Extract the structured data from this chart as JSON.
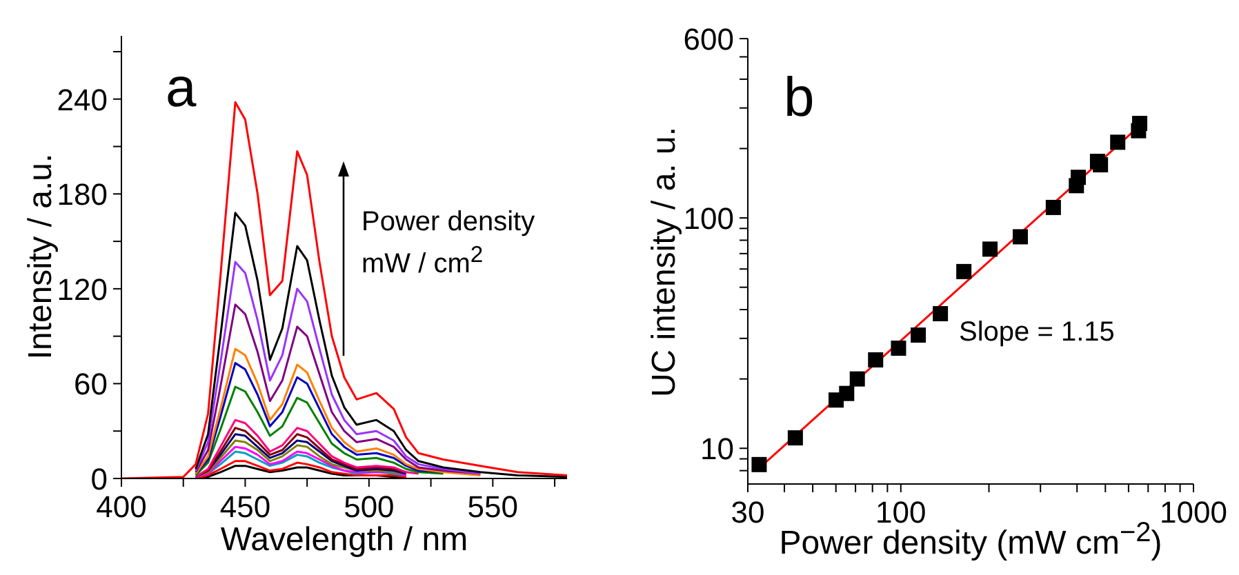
{
  "chart_data": [
    {
      "type": "line",
      "annotations": [
        "a",
        "Power density mW / cm$^{2}$"
      ],
      "xlabel": "Wavelength / nm",
      "ylabel": "Intensity / a.u.",
      "xlim": [
        400,
        580
      ],
      "ylim": [
        0,
        280
      ],
      "xticks": [
        400,
        {
          "value": 425,
          "label": null
        },
        450,
        {
          "value": 475,
          "label": null
        },
        500,
        {
          "value": 525,
          "label": null
        },
        550,
        {
          "value": 575,
          "label": null
        }
      ],
      "yticks": [
        0,
        {
          "value": 30,
          "label": null
        },
        60,
        {
          "value": 90,
          "label": null
        },
        120,
        {
          "value": 150,
          "label": null
        },
        180,
        {
          "value": 210,
          "label": null
        },
        240,
        {
          "value": 270,
          "label": null
        }
      ],
      "x": [
        400,
        425,
        430,
        435,
        440,
        446,
        450,
        455,
        460,
        465,
        471,
        475,
        480,
        485,
        490,
        495,
        503,
        510,
        515,
        520,
        530,
        545,
        560,
        580
      ],
      "series": [
        {
          "color": "#000000",
          "values": [
            null,
            null,
            0,
            1,
            4,
            8,
            8,
            6,
            4,
            5,
            7,
            7,
            5,
            3,
            2,
            2,
            2,
            1,
            1,
            null,
            null,
            null,
            null,
            null
          ]
        },
        {
          "color": "#ff0000",
          "values": [
            null,
            null,
            0,
            2,
            6,
            11,
            11,
            8,
            5,
            6,
            10,
            9,
            7,
            4,
            3,
            2,
            2,
            2,
            1,
            null,
            null,
            null,
            null,
            null
          ]
        },
        {
          "color": "#00a0c0",
          "values": [
            null,
            null,
            1,
            3,
            9,
            17,
            16,
            12,
            8,
            10,
            15,
            14,
            10,
            7,
            5,
            3,
            4,
            3,
            2,
            null,
            null,
            null,
            null,
            null
          ]
        },
        {
          "color": "#ff00ff",
          "values": [
            null,
            null,
            1,
            3,
            11,
            20,
            19,
            15,
            9,
            11,
            17,
            16,
            12,
            8,
            5,
            4,
            4,
            4,
            2,
            null,
            null,
            null,
            null,
            null
          ]
        },
        {
          "color": "#808000",
          "values": [
            null,
            null,
            1,
            4,
            13,
            24,
            23,
            18,
            11,
            14,
            21,
            20,
            14,
            9,
            7,
            5,
            5,
            4,
            3,
            null,
            null,
            null,
            null,
            null
          ]
        },
        {
          "color": "#000080",
          "values": [
            null,
            null,
            1,
            5,
            15,
            28,
            27,
            20,
            13,
            16,
            24,
            23,
            17,
            11,
            8,
            5,
            6,
            5,
            3,
            null,
            null,
            null,
            null,
            null
          ]
        },
        {
          "color": "#800000",
          "values": [
            null,
            null,
            1,
            5,
            17,
            32,
            30,
            23,
            15,
            18,
            28,
            26,
            19,
            12,
            9,
            6,
            7,
            6,
            4,
            null,
            null,
            null,
            null,
            null
          ]
        },
        {
          "color": "#ff0080",
          "values": [
            null,
            null,
            1,
            6,
            20,
            37,
            35,
            27,
            17,
            21,
            32,
            30,
            22,
            14,
            10,
            7,
            8,
            7,
            4,
            3,
            null,
            null,
            null,
            null
          ]
        },
        {
          "color": "#008000",
          "values": [
            null,
            null,
            2,
            10,
            31,
            58,
            55,
            42,
            27,
            33,
            51,
            48,
            35,
            22,
            16,
            12,
            13,
            10,
            6,
            4,
            3,
            null,
            null,
            null
          ]
        },
        {
          "color": "#0000c0",
          "values": [
            null,
            null,
            3,
            12,
            39,
            73,
            69,
            53,
            33,
            42,
            64,
            60,
            44,
            28,
            20,
            15,
            16,
            13,
            8,
            5,
            4,
            null,
            null,
            null
          ]
        },
        {
          "color": "#ff8000",
          "values": [
            null,
            null,
            3,
            14,
            44,
            82,
            78,
            60,
            37,
            47,
            72,
            67,
            49,
            32,
            23,
            17,
            19,
            15,
            9,
            6,
            4,
            2,
            null,
            null
          ]
        },
        {
          "color": "#800080",
          "values": [
            null,
            null,
            4,
            18,
            58,
            110,
            104,
            80,
            49,
            62,
            96,
            90,
            66,
            42,
            30,
            23,
            25,
            20,
            12,
            7,
            5,
            3,
            null,
            null
          ]
        },
        {
          "color": "#9933ff",
          "values": [
            null,
            null,
            5,
            23,
            73,
            137,
            130,
            100,
            62,
            78,
            120,
            112,
            82,
            53,
            37,
            28,
            30,
            24,
            14,
            9,
            6,
            3,
            null,
            null
          ]
        },
        {
          "color": "#000000",
          "values": [
            null,
            null,
            6,
            28,
            90,
            168,
            160,
            125,
            75,
            95,
            147,
            138,
            100,
            65,
            45,
            34,
            37,
            30,
            18,
            11,
            7,
            4,
            2,
            1
          ]
        },
        {
          "color": "#ff0000",
          "values": [
            0,
            1,
            9,
            41,
            128,
            238,
            227,
            180,
            116,
            125,
            207,
            192,
            137,
            90,
            64,
            50,
            54,
            44,
            26,
            16,
            12,
            8,
            4,
            2
          ]
        }
      ]
    },
    {
      "type": "scatter",
      "annotations": [
        "b",
        "Slope = 1.15"
      ],
      "xlabel": "Power density (mW cm$^{−2}$)",
      "ylabel": "UC intensity / a. u.",
      "log": "xy",
      "xlim": [
        30,
        1000
      ],
      "ylim": [
        7,
        600
      ],
      "xticks": [
        30,
        {
          "value": 40,
          "label": null
        },
        {
          "value": 50,
          "label": null
        },
        {
          "value": 60,
          "label": null
        },
        {
          "value": 70,
          "label": null
        },
        {
          "value": 80,
          "label": null
        },
        {
          "value": 90,
          "label": null
        },
        100,
        {
          "value": 200,
          "label": null
        },
        {
          "value": 300,
          "label": null
        },
        {
          "value": 400,
          "label": null
        },
        {
          "value": 500,
          "label": null
        },
        {
          "value": 600,
          "label": null
        },
        {
          "value": 700,
          "label": null
        },
        {
          "value": 800,
          "label": null
        },
        {
          "value": 900,
          "label": null
        },
        1000
      ],
      "yticks": [
        {
          "value": 8,
          "label": null
        },
        {
          "value": 9,
          "label": null
        },
        10,
        {
          "value": 20,
          "label": null
        },
        {
          "value": 30,
          "label": null
        },
        {
          "value": 40,
          "label": null
        },
        {
          "value": 50,
          "label": null
        },
        {
          "value": 60,
          "label": null
        },
        {
          "value": 70,
          "label": null
        },
        {
          "value": 80,
          "label": null
        },
        {
          "value": 90,
          "label": null
        },
        100,
        {
          "value": 200,
          "label": null
        },
        {
          "value": 300,
          "label": null
        },
        {
          "value": 400,
          "label": null
        },
        {
          "value": 500,
          "label": null
        },
        600
      ],
      "series": [
        {
          "color": "#000000",
          "marker": "square",
          "x": [
            32.8,
            43.6,
            60.1,
            65.3,
            71.0,
            82.0,
            98.2,
            114.7,
            136.5,
            164.2,
            201.7,
            256,
            332,
            398,
            404,
            470,
            481,
            551,
            649,
            655
          ],
          "values": [
            8.5,
            11.1,
            16.2,
            17.3,
            20.0,
            24.2,
            27.2,
            31.0,
            38.4,
            58.5,
            73.2,
            82.8,
            111,
            138,
            150,
            176,
            170,
            213,
            239,
            257
          ]
        },
        {
          "type": "line",
          "color": "#ff0000",
          "x": [
            32.8,
            655
          ],
          "values": [
            8.2,
            251
          ]
        }
      ]
    }
  ]
}
